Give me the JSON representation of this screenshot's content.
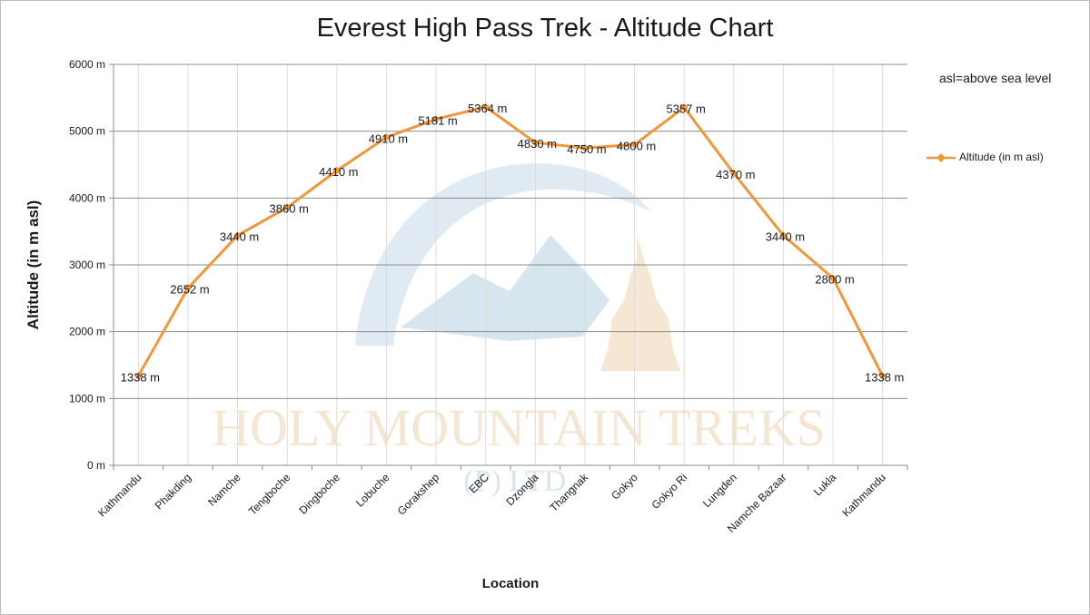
{
  "chart_data": {
    "type": "line",
    "title": "Everest High Pass Trek - Altitude Chart",
    "xlabel": "Location",
    "ylabel": "Altitude (in m asl)",
    "ylim": [
      0,
      6000
    ],
    "ytick_step": 1000,
    "ytick_labels": [
      "0 m",
      "1000 m",
      "2000 m",
      "3000 m",
      "4000 m",
      "5000 m",
      "6000 m"
    ],
    "grid": true,
    "legend_position": "right",
    "annotation": "asl=above sea level",
    "categories": [
      "Kathmandu",
      "Phakding",
      "Namche",
      "Tengboche",
      "Dingboche",
      "Lobuche",
      "Gorakshep",
      "EBC",
      "Dzongla",
      "Thangnak",
      "Gokyo",
      "Gokyo Ri",
      "Lungden",
      "Namche Bazaar",
      "Lukla",
      "Kathmandu"
    ],
    "series": [
      {
        "name": "Altitude (in  m asl)",
        "color": "#f0963c",
        "values": [
          1338,
          2652,
          3440,
          3860,
          4410,
          4910,
          5181,
          5364,
          4830,
          4750,
          4800,
          5357,
          4370,
          3440,
          2800,
          1338
        ],
        "labels": [
          "1338 m",
          "2652 m",
          "3440 m",
          "3860 m",
          "4410 m",
          "4910 m",
          "5181 m",
          "5364 m",
          "4830 m",
          "4750 m",
          "4800 m",
          "5357 m",
          "4370 m",
          "3440 m",
          "2800 m",
          "1338 m"
        ]
      }
    ]
  },
  "watermark": {
    "line1": "HOLY MOUNTAIN TREKS",
    "line2": "(P) LTD."
  }
}
